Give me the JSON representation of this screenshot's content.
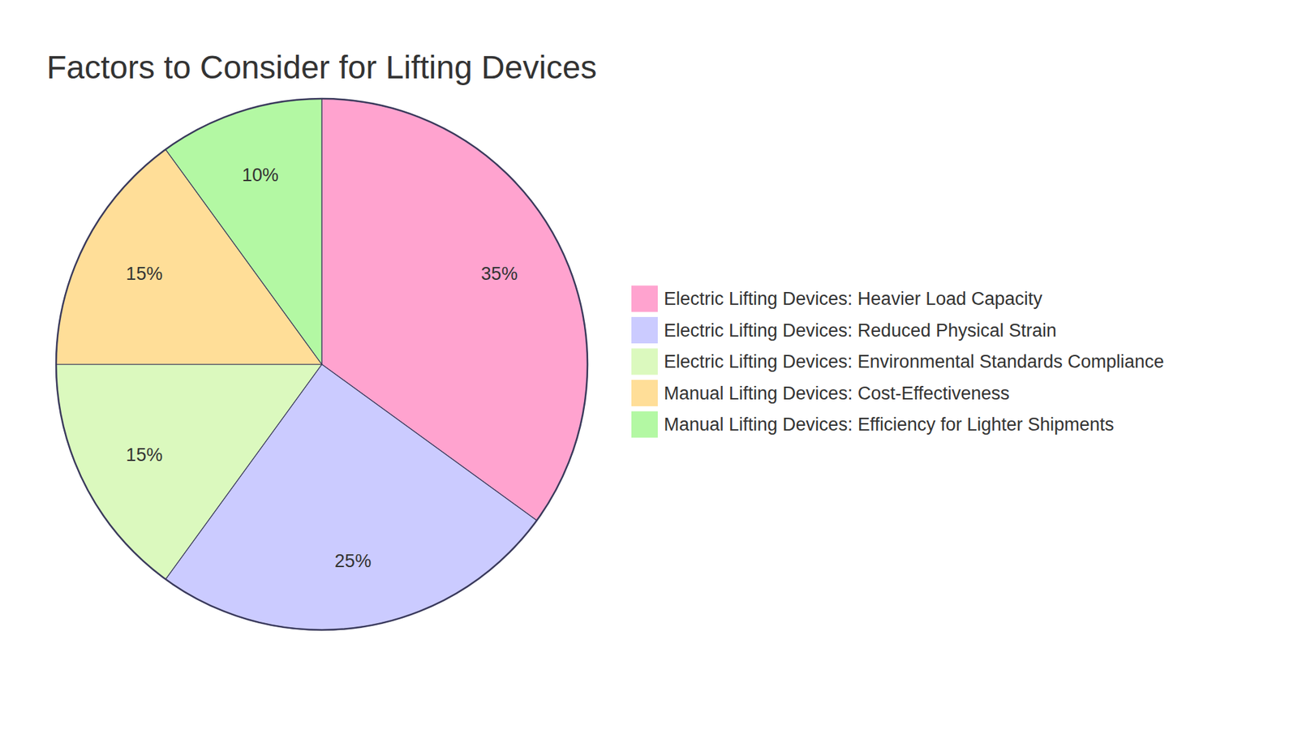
{
  "chart_data": {
    "type": "pie",
    "title": "Factors to Consider for Lifting Devices",
    "categories": [
      "Electric Lifting Devices: Heavier Load Capacity",
      "Electric Lifting Devices: Reduced Physical Strain",
      "Electric Lifting Devices: Environmental Standards Compliance",
      "Manual Lifting Devices: Cost-Effectiveness",
      "Manual Lifting Devices: Efficiency for Lighter Shipments"
    ],
    "values": [
      35,
      25,
      15,
      15,
      10
    ],
    "value_labels": [
      "35%",
      "25%",
      "15%",
      "15%",
      "10%"
    ],
    "colors": [
      "#ffa3cf",
      "#cbcbff",
      "#dbf9be",
      "#ffde98",
      "#b3f8a3"
    ],
    "data_labels": true,
    "legend": "right"
  }
}
